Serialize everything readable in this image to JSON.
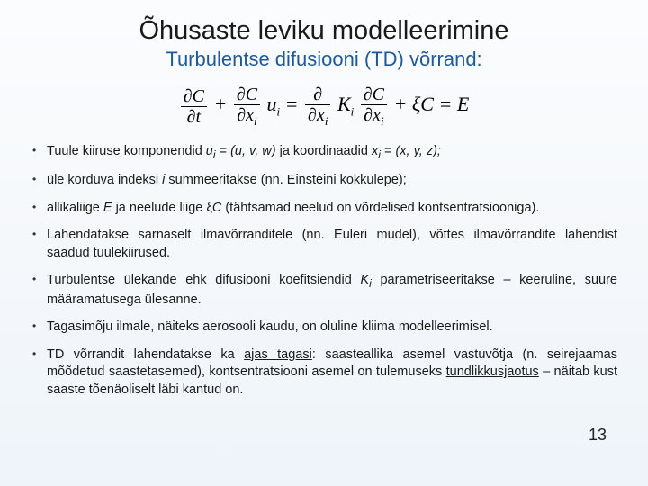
{
  "title": "Õhusaste leviku modelleerimine",
  "subtitle": "Turbulentse difusiooni (TD) võrrand:",
  "equation_html": "<span class='frac'><span class='num'>∂<span class='norm'>C</span></span><span class='den'>∂<span class='norm'>t</span></span></span> + <span class='frac'><span class='num'>∂<span class='norm'>C</span></span><span class='den'>∂<span class='norm'>x</span><span class='sub'>i</span></span></span> <span class='norm'>u</span><span class='sub'>i</span> = <span class='frac'><span class='num'>∂</span><span class='den'>∂<span class='norm'>x</span><span class='sub'>i</span></span></span> <span class='norm'>K</span><span class='sub'>i</span> <span class='frac'><span class='num'>∂<span class='norm'>C</span></span><span class='den'>∂<span class='norm'>x</span><span class='sub'>i</span></span></span> + ξ<span class='norm'>C</span> = <span class='norm'>E</span>",
  "bullets": [
    "Tuule kiiruse komponendid <span class='ital'>u<sub>i</sub></span> = <span class='ital'>(u, v, w)</span> ja koordinaadid <span class='ital'>x<sub>i</sub></span> = <span class='ital'>(x, y, z);</span>",
    "üle korduva indeksi <span class='ital'>i</span> summeeritakse (nn. Einsteini kokkulepe);",
    "allikaliige <span class='ital'>E</span> ja neelude liige ξ<span class='ital'>C</span> (tähtsamad neelud on võrdelised kontsentratsiooniga).",
    "Lahendatakse sarnaselt ilmavõrranditele (nn. Euleri mudel), võttes ilmavõrrandite lahendist saadud tuulekiirused.",
    "Turbulentse ülekande ehk difusiooni koefitsiendid <span class='ital'>K<sub>i</sub></span> parametriseeritakse – keeruline, suure määramatusega ülesanne.",
    "Tagasimõju ilmale, näiteks aerosooli kaudu, on oluline kliima modelleerimisel.",
    "TD võrrandit lahendatakse ka <span class='underline'>ajas tagasi</span>: saasteallika asemel vastuvõtja (n. seirejaamas mõõdetud saastetasemed), kontsentratsiooni asemel on tulemuseks <span class='underline'>tundlikkusjaotus</span> – näitab kust saaste tõenäoliselt läbi kantud on."
  ],
  "page_number": "13",
  "colors": {
    "title": "#1a1a1a",
    "subtitle": "#1e5a9b",
    "body": "#1a1a1a",
    "bg_top": "#fbfcfe",
    "bg_bottom": "#eef4fa"
  }
}
